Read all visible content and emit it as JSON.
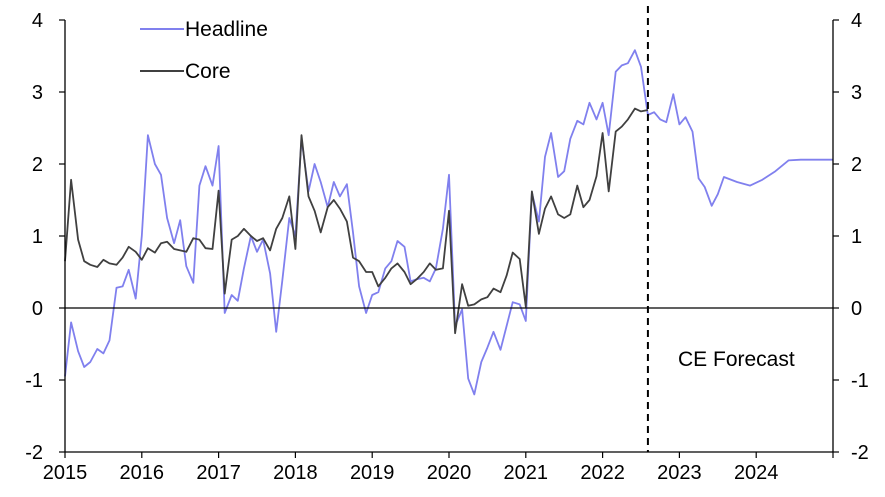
{
  "chart_data": {
    "type": "line",
    "title": "",
    "xlabel": "",
    "ylabel": "",
    "ylim": [
      -2,
      4
    ],
    "xlim": [
      2015,
      2025
    ],
    "x_ticks": [
      "2015",
      "2016",
      "2017",
      "2018",
      "2019",
      "2020",
      "2021",
      "2022",
      "2023",
      "2024"
    ],
    "y_ticks": [
      "-2",
      "-1",
      "0",
      "1",
      "2",
      "3",
      "4"
    ],
    "forecast_start": 2022.59,
    "annotation": "CE Forecast",
    "legend_position": "top-left",
    "colors": {
      "headline": "#8080ee",
      "core": "#404040",
      "forecast_line": "#000000"
    },
    "series": [
      {
        "name": "Headline",
        "key": "headline",
        "points": [
          [
            2015.0,
            -0.95
          ],
          [
            2015.08,
            -0.2
          ],
          [
            2015.17,
            -0.6
          ],
          [
            2015.25,
            -0.82
          ],
          [
            2015.33,
            -0.75
          ],
          [
            2015.42,
            -0.57
          ],
          [
            2015.5,
            -0.63
          ],
          [
            2015.58,
            -0.45
          ],
          [
            2015.67,
            0.28
          ],
          [
            2015.75,
            0.3
          ],
          [
            2015.83,
            0.53
          ],
          [
            2015.92,
            0.13
          ],
          [
            2016.0,
            1.0
          ],
          [
            2016.08,
            2.4
          ],
          [
            2016.17,
            2.0
          ],
          [
            2016.25,
            1.85
          ],
          [
            2016.33,
            1.25
          ],
          [
            2016.42,
            0.9
          ],
          [
            2016.5,
            1.22
          ],
          [
            2016.58,
            0.58
          ],
          [
            2016.67,
            0.35
          ],
          [
            2016.75,
            1.7
          ],
          [
            2016.83,
            1.97
          ],
          [
            2016.92,
            1.7
          ],
          [
            2017.0,
            2.25
          ],
          [
            2017.08,
            -0.07
          ],
          [
            2017.17,
            0.18
          ],
          [
            2017.25,
            0.1
          ],
          [
            2017.33,
            0.55
          ],
          [
            2017.42,
            1.0
          ],
          [
            2017.5,
            0.78
          ],
          [
            2017.58,
            0.95
          ],
          [
            2017.67,
            0.48
          ],
          [
            2017.75,
            -0.33
          ],
          [
            2017.83,
            0.38
          ],
          [
            2017.92,
            1.25
          ],
          [
            2018.0,
            1.0
          ],
          [
            2018.08,
            2.35
          ],
          [
            2018.17,
            1.62
          ],
          [
            2018.25,
            2.0
          ],
          [
            2018.33,
            1.75
          ],
          [
            2018.42,
            1.4
          ],
          [
            2018.5,
            1.75
          ],
          [
            2018.58,
            1.55
          ],
          [
            2018.67,
            1.72
          ],
          [
            2018.75,
            1.05
          ],
          [
            2018.83,
            0.3
          ],
          [
            2018.92,
            -0.07
          ],
          [
            2019.0,
            0.18
          ],
          [
            2019.08,
            0.22
          ],
          [
            2019.17,
            0.55
          ],
          [
            2019.25,
            0.65
          ],
          [
            2019.33,
            0.93
          ],
          [
            2019.42,
            0.85
          ],
          [
            2019.5,
            0.37
          ],
          [
            2019.58,
            0.4
          ],
          [
            2019.67,
            0.42
          ],
          [
            2019.75,
            0.37
          ],
          [
            2019.83,
            0.55
          ],
          [
            2019.92,
            1.1
          ],
          [
            2020.0,
            1.85
          ],
          [
            2020.08,
            -0.25
          ],
          [
            2020.17,
            -0.02
          ],
          [
            2020.25,
            -0.98
          ],
          [
            2020.33,
            -1.2
          ],
          [
            2020.42,
            -0.75
          ],
          [
            2020.5,
            -0.55
          ],
          [
            2020.58,
            -0.33
          ],
          [
            2020.67,
            -0.58
          ],
          [
            2020.75,
            -0.25
          ],
          [
            2020.83,
            0.08
          ],
          [
            2020.92,
            0.05
          ],
          [
            2021.0,
            -0.18
          ],
          [
            2021.08,
            1.6
          ],
          [
            2021.17,
            1.2
          ],
          [
            2021.25,
            2.1
          ],
          [
            2021.33,
            2.43
          ],
          [
            2021.42,
            1.82
          ],
          [
            2021.5,
            1.9
          ],
          [
            2021.58,
            2.35
          ],
          [
            2021.67,
            2.6
          ],
          [
            2021.75,
            2.55
          ],
          [
            2021.83,
            2.85
          ],
          [
            2021.92,
            2.62
          ],
          [
            2022.0,
            2.85
          ],
          [
            2022.08,
            2.4
          ],
          [
            2022.17,
            3.28
          ],
          [
            2022.25,
            3.37
          ],
          [
            2022.33,
            3.4
          ],
          [
            2022.42,
            3.58
          ],
          [
            2022.5,
            3.35
          ],
          [
            2022.59,
            2.68
          ],
          [
            2022.67,
            2.72
          ],
          [
            2022.75,
            2.62
          ],
          [
            2022.83,
            2.58
          ],
          [
            2022.92,
            2.97
          ],
          [
            2023.0,
            2.55
          ],
          [
            2023.08,
            2.65
          ],
          [
            2023.17,
            2.45
          ],
          [
            2023.25,
            1.8
          ],
          [
            2023.33,
            1.68
          ],
          [
            2023.42,
            1.42
          ],
          [
            2023.5,
            1.58
          ],
          [
            2023.58,
            1.82
          ],
          [
            2023.75,
            1.75
          ],
          [
            2023.92,
            1.7
          ],
          [
            2024.08,
            1.78
          ],
          [
            2024.25,
            1.9
          ],
          [
            2024.42,
            2.05
          ],
          [
            2024.58,
            2.06
          ],
          [
            2024.75,
            2.06
          ],
          [
            2024.92,
            2.06
          ],
          [
            2025.0,
            2.06
          ]
        ]
      },
      {
        "name": "Core",
        "key": "core",
        "points": [
          [
            2015.0,
            0.65
          ],
          [
            2015.08,
            1.78
          ],
          [
            2015.17,
            0.95
          ],
          [
            2015.25,
            0.65
          ],
          [
            2015.33,
            0.6
          ],
          [
            2015.42,
            0.57
          ],
          [
            2015.5,
            0.67
          ],
          [
            2015.58,
            0.62
          ],
          [
            2015.67,
            0.6
          ],
          [
            2015.75,
            0.7
          ],
          [
            2015.83,
            0.85
          ],
          [
            2015.92,
            0.78
          ],
          [
            2016.0,
            0.67
          ],
          [
            2016.08,
            0.83
          ],
          [
            2016.17,
            0.77
          ],
          [
            2016.25,
            0.9
          ],
          [
            2016.33,
            0.92
          ],
          [
            2016.42,
            0.82
          ],
          [
            2016.5,
            0.8
          ],
          [
            2016.58,
            0.78
          ],
          [
            2016.67,
            0.97
          ],
          [
            2016.75,
            0.95
          ],
          [
            2016.83,
            0.83
          ],
          [
            2016.92,
            0.82
          ],
          [
            2017.0,
            1.63
          ],
          [
            2017.08,
            0.2
          ],
          [
            2017.17,
            0.95
          ],
          [
            2017.25,
            1.0
          ],
          [
            2017.33,
            1.1
          ],
          [
            2017.42,
            1.0
          ],
          [
            2017.5,
            0.93
          ],
          [
            2017.58,
            0.97
          ],
          [
            2017.67,
            0.8
          ],
          [
            2017.75,
            1.1
          ],
          [
            2017.83,
            1.25
          ],
          [
            2017.92,
            1.55
          ],
          [
            2018.0,
            0.82
          ],
          [
            2018.08,
            2.4
          ],
          [
            2018.17,
            1.55
          ],
          [
            2018.25,
            1.35
          ],
          [
            2018.33,
            1.05
          ],
          [
            2018.42,
            1.4
          ],
          [
            2018.5,
            1.5
          ],
          [
            2018.58,
            1.38
          ],
          [
            2018.67,
            1.2
          ],
          [
            2018.75,
            0.7
          ],
          [
            2018.83,
            0.65
          ],
          [
            2018.92,
            0.5
          ],
          [
            2019.0,
            0.5
          ],
          [
            2019.08,
            0.3
          ],
          [
            2019.17,
            0.42
          ],
          [
            2019.25,
            0.55
          ],
          [
            2019.33,
            0.62
          ],
          [
            2019.42,
            0.5
          ],
          [
            2019.5,
            0.33
          ],
          [
            2019.58,
            0.4
          ],
          [
            2019.67,
            0.5
          ],
          [
            2019.75,
            0.62
          ],
          [
            2019.83,
            0.53
          ],
          [
            2019.92,
            0.55
          ],
          [
            2020.0,
            1.35
          ],
          [
            2020.08,
            -0.35
          ],
          [
            2020.17,
            0.33
          ],
          [
            2020.25,
            0.03
          ],
          [
            2020.33,
            0.05
          ],
          [
            2020.42,
            0.12
          ],
          [
            2020.5,
            0.15
          ],
          [
            2020.58,
            0.27
          ],
          [
            2020.67,
            0.22
          ],
          [
            2020.75,
            0.45
          ],
          [
            2020.83,
            0.77
          ],
          [
            2020.92,
            0.68
          ],
          [
            2021.0,
            0.02
          ],
          [
            2021.08,
            1.62
          ],
          [
            2021.17,
            1.03
          ],
          [
            2021.25,
            1.38
          ],
          [
            2021.33,
            1.55
          ],
          [
            2021.42,
            1.3
          ],
          [
            2021.5,
            1.25
          ],
          [
            2021.58,
            1.3
          ],
          [
            2021.67,
            1.7
          ],
          [
            2021.75,
            1.4
          ],
          [
            2021.83,
            1.5
          ],
          [
            2021.92,
            1.83
          ],
          [
            2022.0,
            2.43
          ],
          [
            2022.08,
            1.62
          ],
          [
            2022.17,
            2.45
          ],
          [
            2022.25,
            2.52
          ],
          [
            2022.33,
            2.62
          ],
          [
            2022.42,
            2.77
          ],
          [
            2022.5,
            2.73
          ],
          [
            2022.59,
            2.75
          ]
        ]
      }
    ]
  }
}
